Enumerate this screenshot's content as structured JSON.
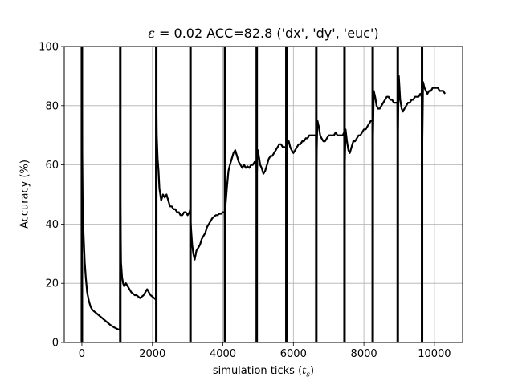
{
  "chart_data": {
    "type": "line",
    "title": {
      "epsilon_symbol": "ε",
      "epsilon_value": " = 0.02 ACC=82.8 ('dx', 'dy', 'euc')"
    },
    "xlabel": {
      "text": "simulation ticks (",
      "symbol": "t",
      "subscript": "s",
      "close": ")"
    },
    "ylabel": "Accuracy (%)",
    "xlim": [
      -500,
      10800
    ],
    "ylim": [
      0,
      100
    ],
    "xticks": [
      0,
      2000,
      4000,
      6000,
      8000,
      10000
    ],
    "yticks": [
      0,
      20,
      40,
      60,
      80,
      100
    ],
    "grid": true,
    "series_color": "#000000",
    "task_boundaries": [
      0,
      1090,
      2110,
      3080,
      4060,
      4960,
      5800,
      6650,
      7450,
      8250,
      8960,
      9650
    ],
    "series": [
      {
        "x": [
          0,
          25,
          50,
          80,
          110,
          150,
          200,
          250,
          300,
          350,
          400,
          450,
          500,
          550,
          600,
          700,
          800,
          900,
          1000,
          1080,
          1090,
          1110,
          1140,
          1170,
          1200,
          1250,
          1300,
          1350,
          1400,
          1450,
          1500,
          1550,
          1600,
          1650,
          1700,
          1750,
          1800,
          1850,
          1900,
          1950,
          2000,
          2050,
          2100,
          2110,
          2125,
          2150,
          2175,
          2200,
          2250,
          2300,
          2350,
          2400,
          2450,
          2500,
          2550,
          2600,
          2650,
          2700,
          2750,
          2800,
          2850,
          2900,
          2950,
          3000,
          3050,
          3075,
          3080,
          3100,
          3130,
          3160,
          3200,
          3250,
          3300,
          3350,
          3400,
          3450,
          3500,
          3550,
          3600,
          3650,
          3700,
          3750,
          3800,
          3850,
          3900,
          3950,
          4000,
          4050,
          4060,
          4080,
          4120,
          4160,
          4200,
          4250,
          4300,
          4350,
          4400,
          4450,
          4500,
          4550,
          4600,
          4650,
          4700,
          4750,
          4800,
          4850,
          4900,
          4950,
          4960,
          4990,
          5020,
          5060,
          5100,
          5150,
          5200,
          5250,
          5300,
          5350,
          5400,
          5450,
          5500,
          5550,
          5600,
          5650,
          5700,
          5750,
          5790,
          5800,
          5830,
          5870,
          5910,
          5950,
          6000,
          6050,
          6100,
          6150,
          6200,
          6250,
          6300,
          6350,
          6400,
          6450,
          6500,
          6550,
          6600,
          6640,
          6650,
          6680,
          6720,
          6760,
          6800,
          6850,
          6900,
          6950,
          7000,
          7050,
          7100,
          7150,
          7200,
          7250,
          7300,
          7350,
          7400,
          7440,
          7450,
          7480,
          7520,
          7560,
          7600,
          7650,
          7700,
          7750,
          7800,
          7850,
          7900,
          7950,
          8000,
          8050,
          8100,
          8150,
          8200,
          8240,
          8250,
          8280,
          8320,
          8360,
          8400,
          8450,
          8500,
          8550,
          8600,
          8650,
          8700,
          8750,
          8800,
          8850,
          8900,
          8950,
          8960,
          8990,
          9030,
          9070,
          9110,
          9150,
          9200,
          9250,
          9300,
          9350,
          9400,
          9450,
          9500,
          9550,
          9600,
          9640,
          9650,
          9680,
          9720,
          9760,
          9800,
          9850,
          9900,
          9950,
          10000,
          10050,
          10100,
          10150,
          10200,
          10250,
          10300
        ],
        "y": [
          80,
          45,
          36,
          27,
          22,
          17,
          14,
          12,
          11,
          10.5,
          10,
          9.5,
          9,
          8.5,
          8,
          7,
          6,
          5.2,
          4.6,
          4.2,
          50,
          27,
          22,
          20,
          19,
          20,
          19,
          18,
          17,
          16.5,
          16,
          16,
          15.5,
          15,
          15.5,
          16,
          17,
          18,
          17,
          16,
          15.5,
          15,
          14.5,
          85,
          70,
          62,
          58,
          52,
          48,
          50,
          49,
          50,
          48,
          46,
          46,
          45,
          45,
          44,
          44,
          43,
          43,
          44,
          44,
          43,
          44,
          45,
          42,
          38,
          33,
          30,
          28,
          31,
          32,
          33,
          35,
          36,
          37,
          39,
          40,
          41,
          42,
          42.5,
          43,
          43,
          43.5,
          43.5,
          44,
          44,
          40,
          47,
          53,
          58,
          60,
          62,
          64,
          65,
          63,
          61,
          60,
          59,
          60,
          59,
          59.5,
          59,
          60,
          60,
          61,
          61,
          56,
          65,
          63,
          60,
          59,
          57,
          58,
          60,
          62,
          63,
          63,
          64,
          65,
          66,
          67,
          67,
          66,
          66,
          66,
          58,
          67,
          68,
          66,
          65,
          64,
          65,
          66,
          67,
          67,
          68,
          68,
          69,
          69,
          70,
          70,
          70,
          70,
          70,
          58,
          75,
          73,
          70,
          69,
          68,
          68,
          69,
          70,
          70,
          70,
          70,
          71,
          70,
          70,
          70,
          70,
          71,
          56,
          72,
          68,
          65,
          64,
          66,
          68,
          68,
          69,
          70,
          70,
          71,
          72,
          72,
          73,
          74,
          75,
          75,
          65,
          85,
          83,
          80,
          79,
          79,
          80,
          81,
          82,
          83,
          83,
          82,
          82,
          81,
          81,
          81,
          68,
          90,
          82,
          79,
          78,
          79,
          80,
          81,
          81,
          82,
          82,
          83,
          83,
          83,
          84,
          83,
          60,
          88,
          86,
          85,
          84,
          85,
          85,
          86,
          86,
          86,
          86,
          85,
          85,
          85,
          84
        ]
      }
    ]
  }
}
